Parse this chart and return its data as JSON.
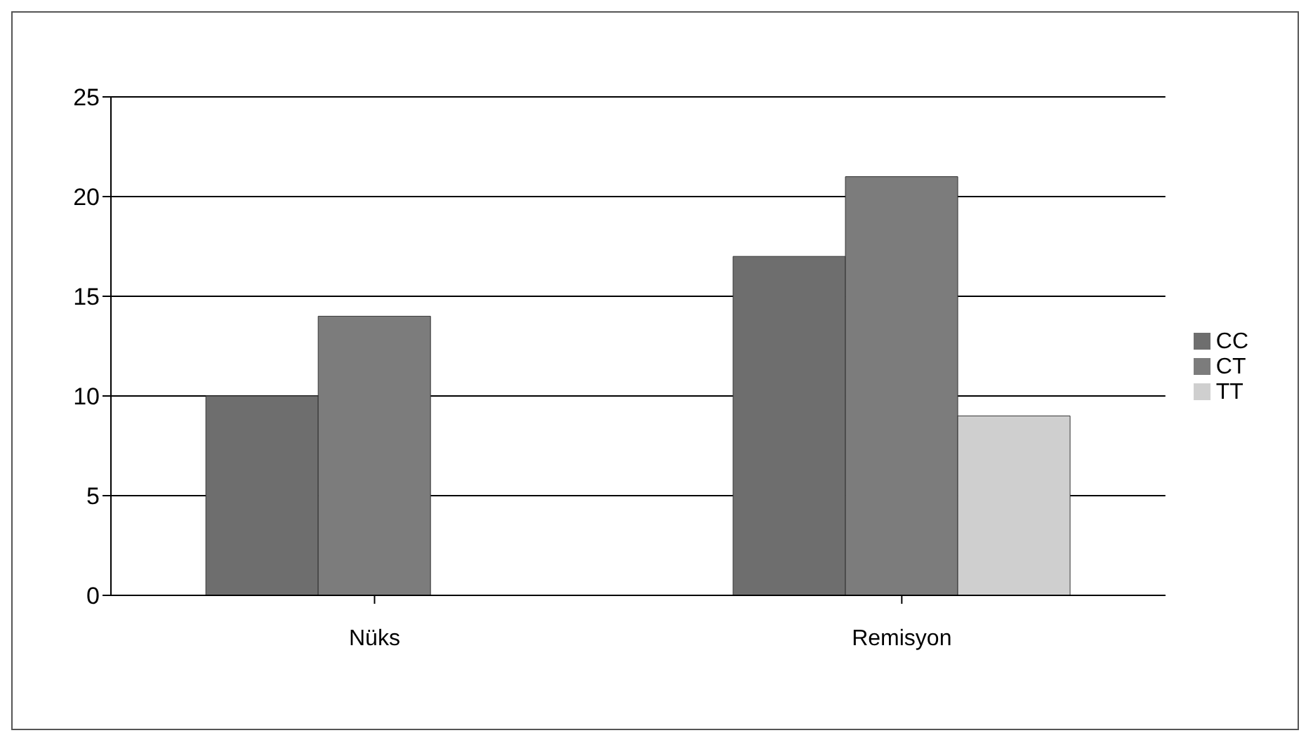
{
  "chart_data": {
    "type": "bar",
    "categories": [
      "Nüks",
      "Remisyon"
    ],
    "series": [
      {
        "name": "CC",
        "color": "#6e6e6e",
        "values": [
          10,
          17
        ]
      },
      {
        "name": "CT",
        "color": "#7c7c7c",
        "values": [
          14,
          21
        ]
      },
      {
        "name": "TT",
        "color": "#cfcfcf",
        "values": [
          0,
          9
        ]
      }
    ],
    "ylim": [
      0,
      25
    ],
    "yticks": [
      0,
      5,
      10,
      15,
      20,
      25
    ],
    "grid": "y",
    "legend": "right"
  }
}
